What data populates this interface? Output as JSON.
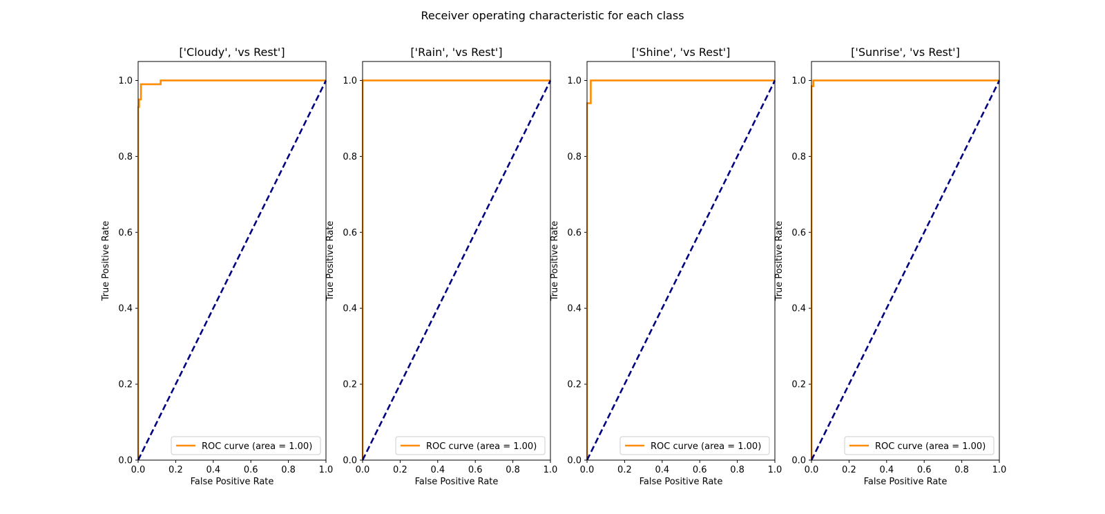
{
  "figure": {
    "suptitle": "Receiver operating characteristic for each class"
  },
  "style": {
    "roc_color": "#ff8c00",
    "diagonal_color": "#000080",
    "axes_color": "#000000",
    "background": "#ffffff"
  },
  "chart_data": [
    {
      "type": "line",
      "title": "['Cloudy', 'vs Rest']",
      "xlabel": "False Positive Rate",
      "ylabel": "True Positive Rate",
      "xlim": [
        0.0,
        1.0
      ],
      "ylim": [
        0.0,
        1.05
      ],
      "xticks": [
        "0.0",
        "0.2",
        "0.4",
        "0.6",
        "0.8",
        "1.0"
      ],
      "yticks": [
        "0.0",
        "0.2",
        "0.4",
        "0.6",
        "0.8",
        "1.0"
      ],
      "grid": false,
      "legend_position": "lower right",
      "series": [
        {
          "name": "ROC curve (area = 1.00)",
          "x": [
            0.0,
            0.0,
            0.005,
            0.005,
            0.015,
            0.015,
            0.12,
            0.12,
            1.0
          ],
          "y": [
            0.0,
            0.93,
            0.93,
            0.95,
            0.95,
            0.99,
            0.99,
            1.0,
            1.0
          ]
        },
        {
          "style": "dashed",
          "x": [
            0.0,
            1.0
          ],
          "y": [
            0.0,
            1.0
          ]
        }
      ]
    },
    {
      "type": "line",
      "title": "['Rain', 'vs Rest']",
      "xlabel": "False Positive Rate",
      "ylabel": "True Positive Rate",
      "xlim": [
        0.0,
        1.0
      ],
      "ylim": [
        0.0,
        1.05
      ],
      "xticks": [
        "0.0",
        "0.2",
        "0.4",
        "0.6",
        "0.8",
        "1.0"
      ],
      "yticks": [
        "0.0",
        "0.2",
        "0.4",
        "0.6",
        "0.8",
        "1.0"
      ],
      "grid": false,
      "legend_position": "lower right",
      "series": [
        {
          "name": "ROC curve (area = 1.00)",
          "x": [
            0.0,
            0.0,
            1.0
          ],
          "y": [
            0.0,
            1.0,
            1.0
          ]
        },
        {
          "style": "dashed",
          "x": [
            0.0,
            1.0
          ],
          "y": [
            0.0,
            1.0
          ]
        }
      ]
    },
    {
      "type": "line",
      "title": "['Shine', 'vs Rest']",
      "xlabel": "False Positive Rate",
      "ylabel": "True Positive Rate",
      "xlim": [
        0.0,
        1.0
      ],
      "ylim": [
        0.0,
        1.05
      ],
      "xticks": [
        "0.0",
        "0.2",
        "0.4",
        "0.6",
        "0.8",
        "1.0"
      ],
      "yticks": [
        "0.0",
        "0.2",
        "0.4",
        "0.6",
        "0.8",
        "1.0"
      ],
      "grid": false,
      "legend_position": "lower right",
      "series": [
        {
          "name": "ROC curve (area = 1.00)",
          "x": [
            0.0,
            0.0,
            0.02,
            0.02,
            1.0
          ],
          "y": [
            0.0,
            0.94,
            0.94,
            1.0,
            1.0
          ]
        },
        {
          "style": "dashed",
          "x": [
            0.0,
            1.0
          ],
          "y": [
            0.0,
            1.0
          ]
        }
      ]
    },
    {
      "type": "line",
      "title": "['Sunrise', 'vs Rest']",
      "xlabel": "False Positive Rate",
      "ylabel": "True Positive Rate",
      "xlim": [
        0.0,
        1.0
      ],
      "ylim": [
        0.0,
        1.05
      ],
      "xticks": [
        "0.0",
        "0.2",
        "0.4",
        "0.6",
        "0.8",
        "1.0"
      ],
      "yticks": [
        "0.0",
        "0.2",
        "0.4",
        "0.6",
        "0.8",
        "1.0"
      ],
      "grid": false,
      "legend_position": "lower right",
      "series": [
        {
          "name": "ROC curve (area = 1.00)",
          "x": [
            0.0,
            0.0,
            0.01,
            0.01,
            1.0
          ],
          "y": [
            0.0,
            0.985,
            0.985,
            1.0,
            1.0
          ]
        },
        {
          "style": "dashed",
          "x": [
            0.0,
            1.0
          ],
          "y": [
            0.0,
            1.0
          ]
        }
      ]
    }
  ]
}
